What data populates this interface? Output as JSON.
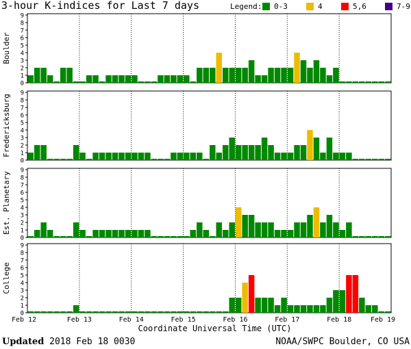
{
  "header": {
    "title": "3-hour K-indices for Last 7 days",
    "legend_label": "Legend:",
    "legend": [
      {
        "label": "0-3",
        "color": "#008800"
      },
      {
        "label": "4",
        "color": "#eebb00"
      },
      {
        "label": "5,6",
        "color": "#ff0000"
      },
      {
        "label": "7-9",
        "color": "#440088"
      }
    ]
  },
  "chart_data": {
    "type": "bar",
    "xlabel": "Coordinate Universal Time (UTC)",
    "x_ticks": [
      "Feb 12",
      "Feb 13",
      "Feb 14",
      "Feb 15",
      "Feb 16",
      "Feb 17",
      "Feb 18",
      "Feb 19"
    ],
    "y_ticks": [
      "0",
      "1",
      "2",
      "3",
      "4",
      "5",
      "6",
      "7",
      "8",
      "9"
    ],
    "ylim": [
      0,
      9
    ],
    "bars_per_day": 8,
    "color_scale": [
      {
        "min": 0,
        "max": 3,
        "color": "#008800"
      },
      {
        "min": 4,
        "max": 4,
        "color": "#eebb00"
      },
      {
        "min": 5,
        "max": 6,
        "color": "#ff0000"
      },
      {
        "min": 7,
        "max": 9,
        "color": "#440088"
      }
    ],
    "panels": [
      {
        "name": "Boulder",
        "values": [
          1,
          2,
          2,
          1,
          0,
          2,
          2,
          0,
          0,
          1,
          1,
          0,
          1,
          1,
          1,
          1,
          1,
          0,
          0,
          0,
          1,
          1,
          1,
          1,
          1,
          0,
          2,
          2,
          2,
          4,
          2,
          2,
          2,
          2,
          3,
          1,
          1,
          2,
          2,
          2,
          2,
          4,
          3,
          2,
          3,
          2,
          1,
          2,
          0,
          0,
          0,
          0,
          0,
          0,
          0,
          0
        ]
      },
      {
        "name": "Fredericksburg",
        "values": [
          1,
          2,
          2,
          0,
          0,
          0,
          0,
          2,
          1,
          0,
          1,
          1,
          1,
          1,
          1,
          1,
          1,
          1,
          1,
          0,
          0,
          0,
          1,
          1,
          1,
          1,
          1,
          0,
          2,
          1,
          2,
          3,
          2,
          2,
          2,
          2,
          3,
          2,
          1,
          1,
          1,
          2,
          2,
          4,
          3,
          1,
          3,
          1,
          1,
          1,
          0,
          0,
          0,
          0,
          0,
          0
        ]
      },
      {
        "name": "Est. Planetary",
        "values": [
          0,
          1,
          2,
          1,
          0,
          0,
          0,
          2,
          1,
          0,
          1,
          1,
          1,
          1,
          1,
          1,
          1,
          1,
          1,
          0,
          0,
          0,
          0,
          0,
          0,
          1,
          2,
          1,
          0,
          2,
          1,
          2,
          4,
          3,
          3,
          2,
          2,
          2,
          1,
          1,
          1,
          2,
          2,
          3,
          4,
          2,
          3,
          2,
          1,
          2,
          0,
          0,
          0,
          0,
          0,
          0
        ]
      },
      {
        "name": "College",
        "values": [
          0,
          0,
          0,
          0,
          0,
          0,
          0,
          1,
          0,
          0,
          0,
          0,
          0,
          0,
          0,
          0,
          0,
          0,
          0,
          0,
          0,
          0,
          0,
          0,
          0,
          0,
          0,
          0,
          0,
          0,
          0,
          2,
          2,
          4,
          5,
          2,
          2,
          2,
          1,
          2,
          1,
          1,
          1,
          1,
          1,
          1,
          2,
          3,
          3,
          5,
          5,
          2,
          1,
          1,
          0,
          0
        ]
      }
    ]
  },
  "footer": {
    "updated_label": "Updated",
    "updated_value": "2018 Feb 18 0030",
    "credit": "NOAA/SWPC Boulder, CO USA"
  }
}
